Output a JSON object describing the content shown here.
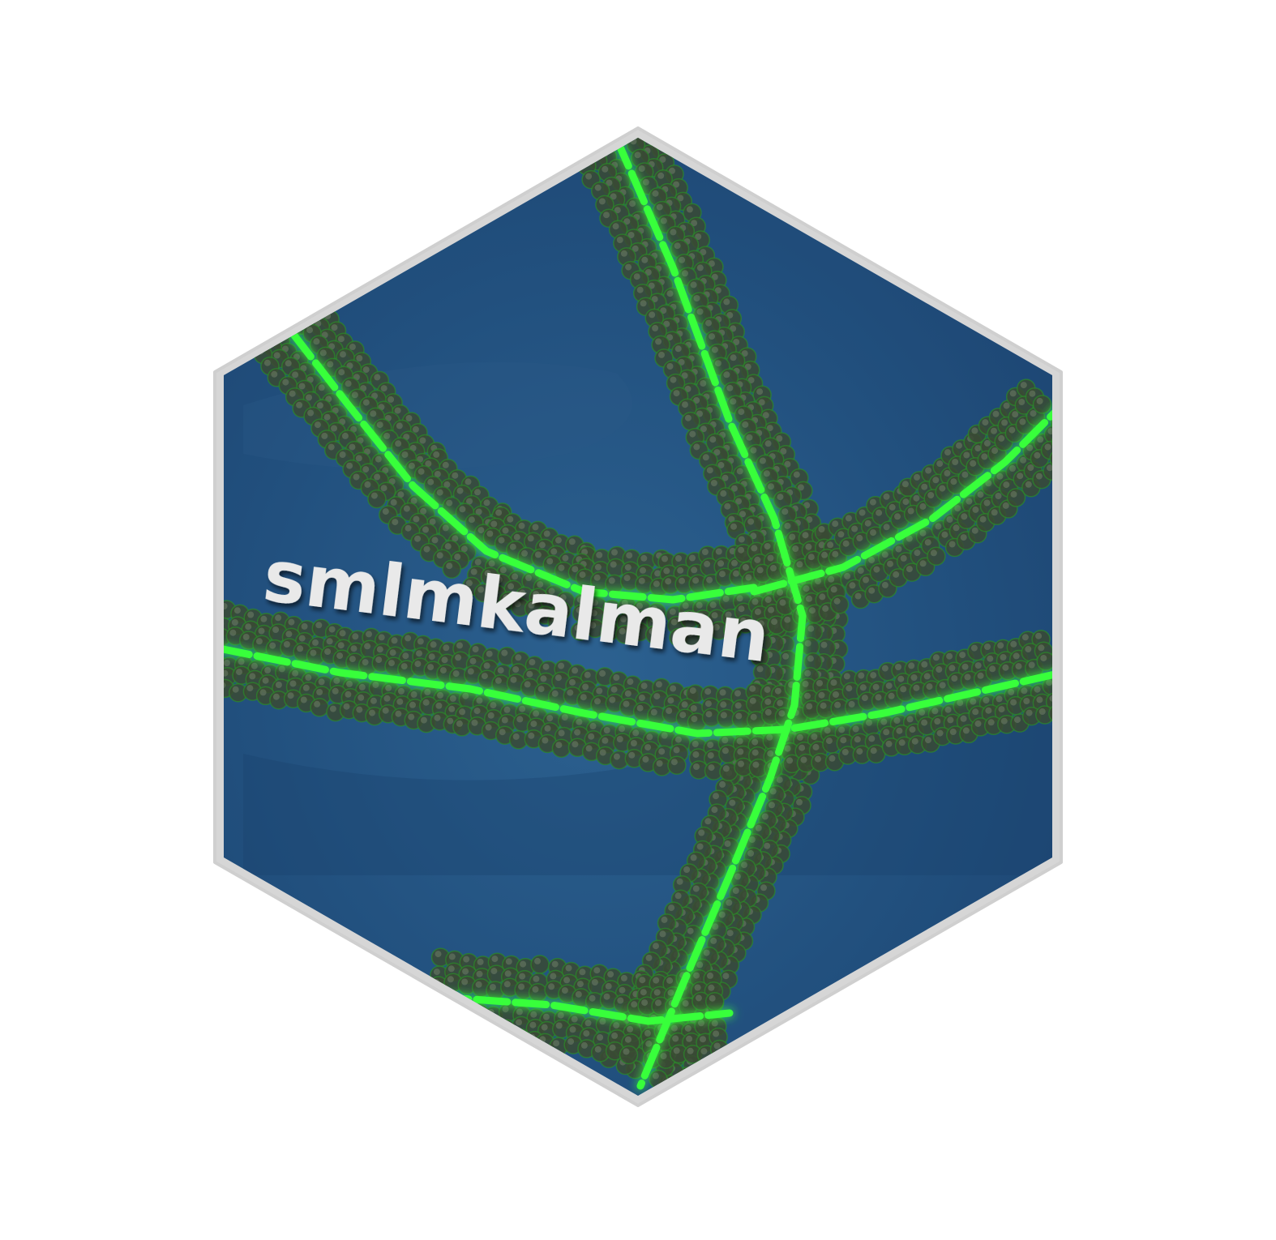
{
  "logo": {
    "text": "smlmkalman",
    "colors": {
      "background": "#ffffff",
      "hex_fill": "#1f4b79",
      "hex_fill_light": "#2a5d8c",
      "hex_border": "#d4d4d4",
      "glow_green": "#39ff3a",
      "bead_dark": "#3a4a34",
      "text_color": "#e8e8e8"
    },
    "artwork": "microscopy-filaments-with-beads"
  }
}
